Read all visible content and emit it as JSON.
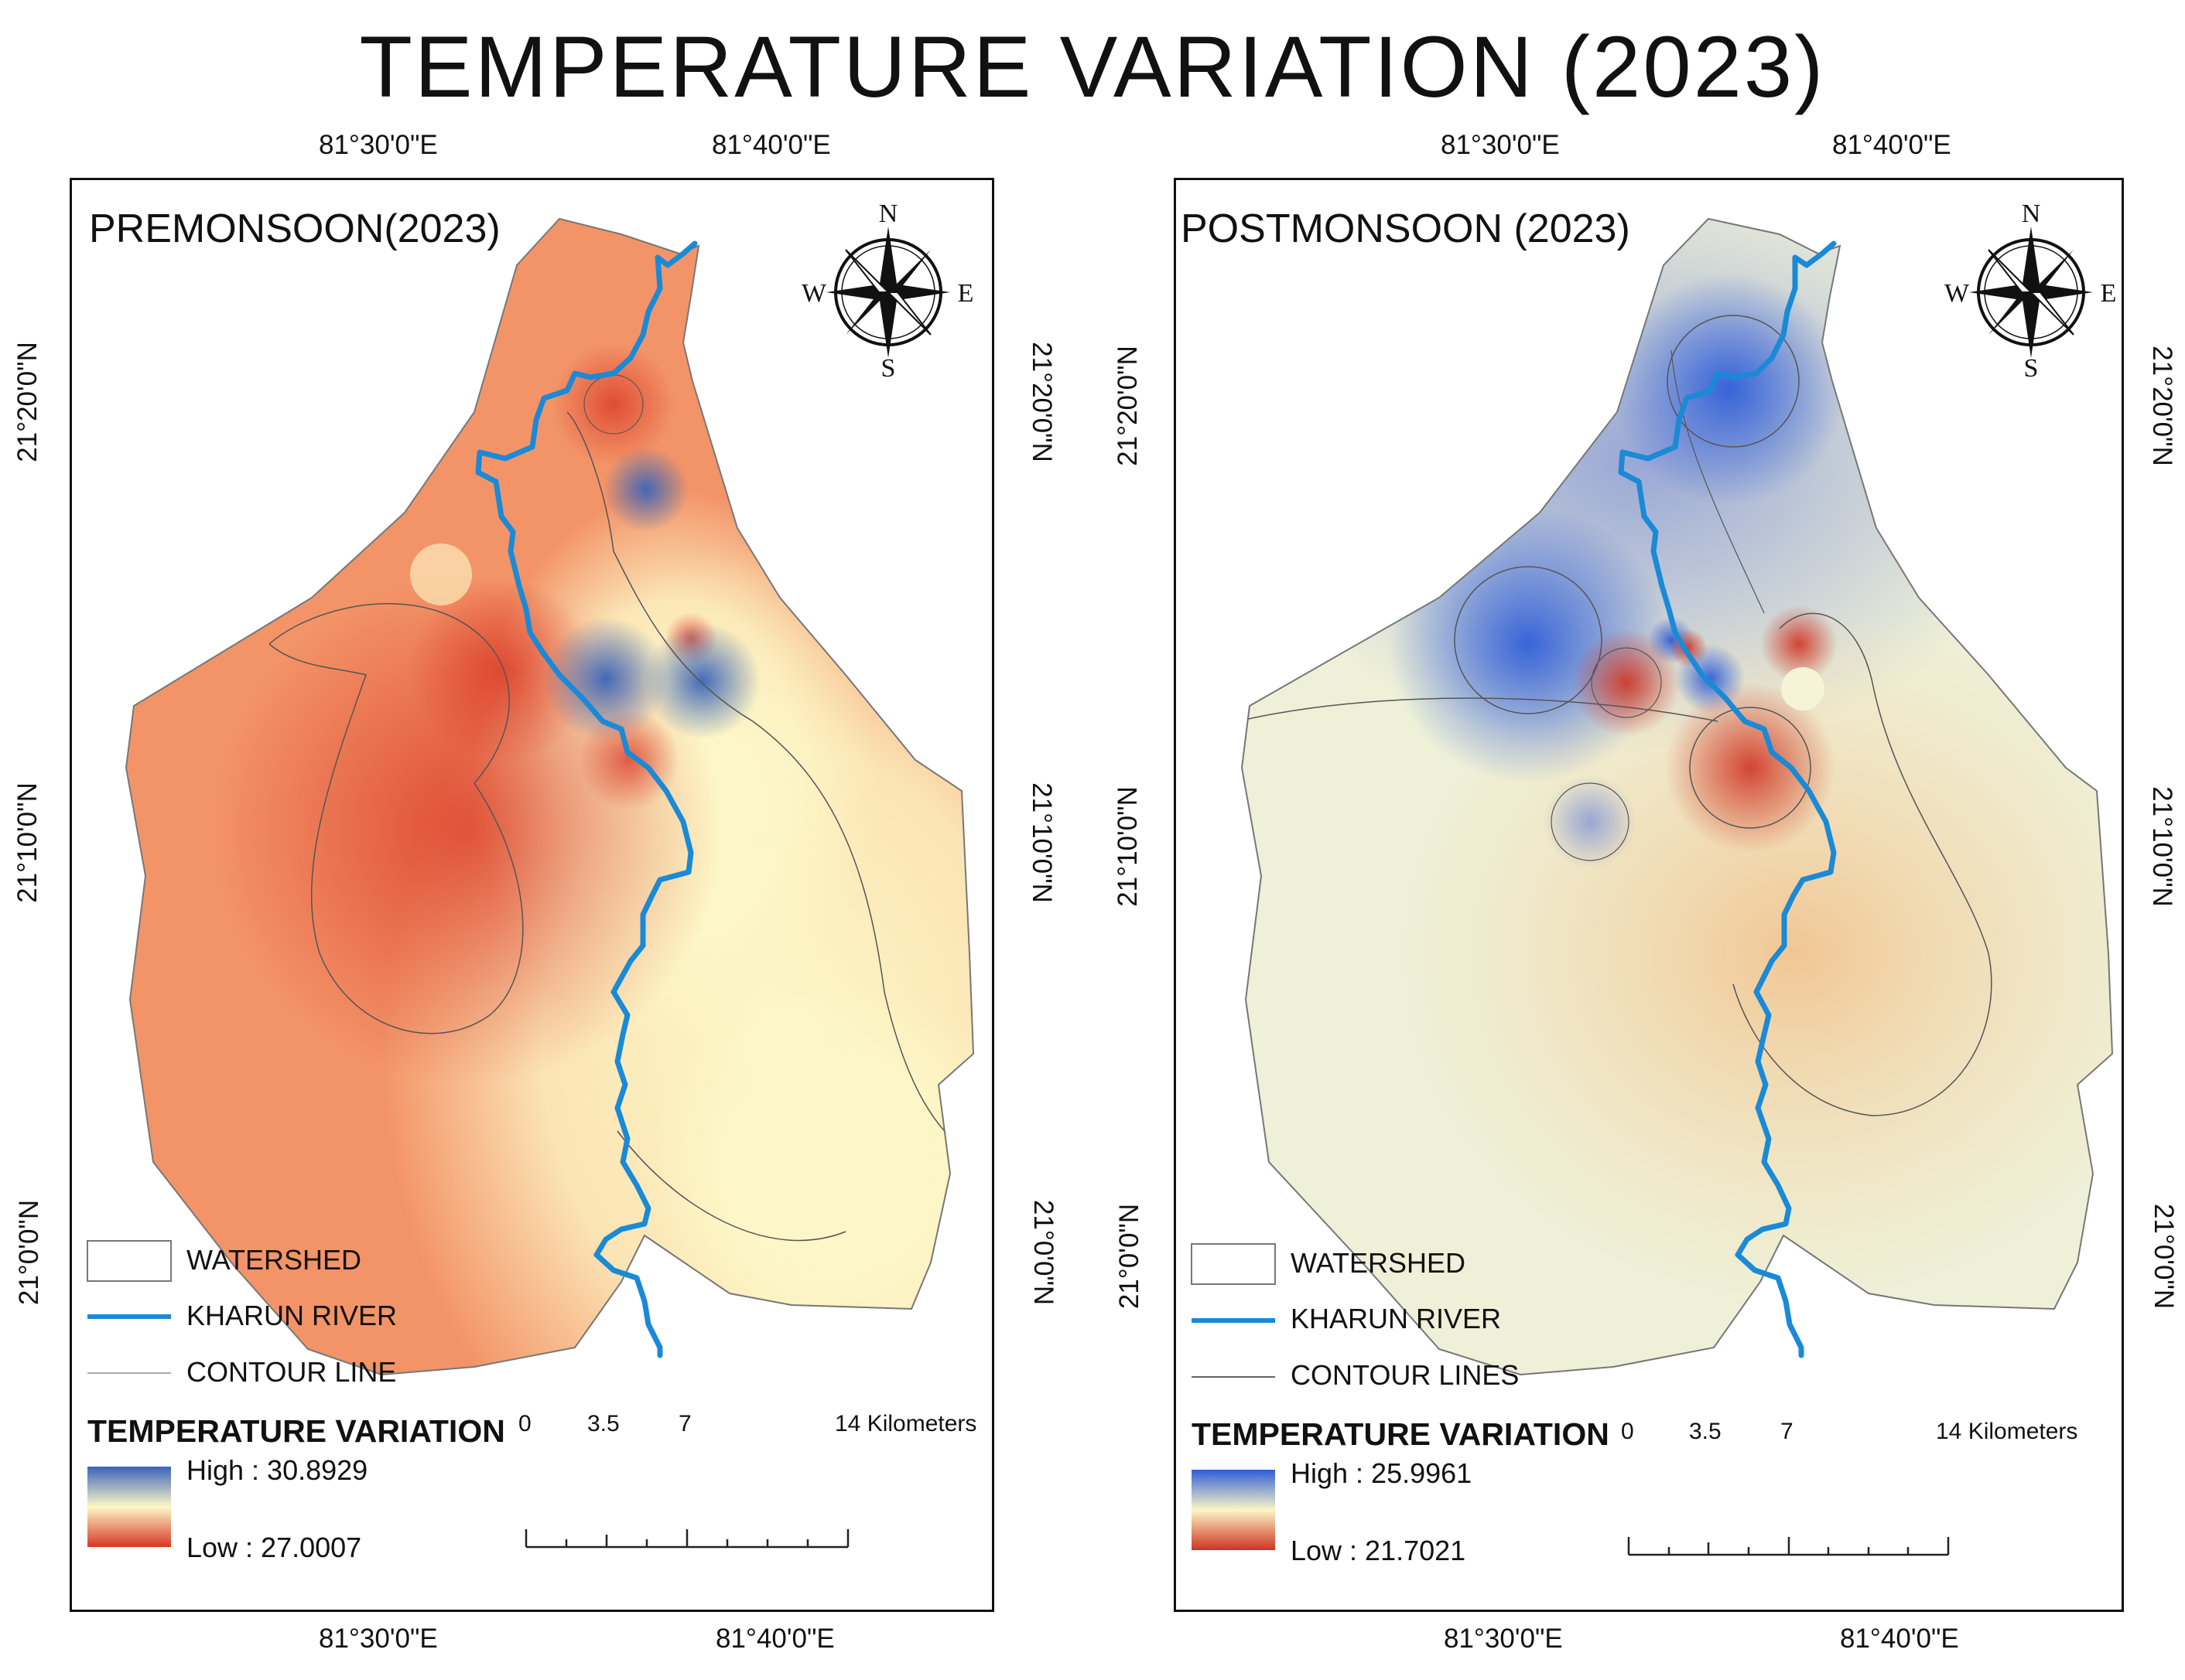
{
  "title": "TEMPERATURE VARIATION (2023)",
  "panels": [
    {
      "id": "premonsoon",
      "season": "PREMONSOON(2023)",
      "top_longitudes": [
        "81°30'0\"E",
        "81°40'0\"E"
      ],
      "bottom_longitudes": [
        "81°30'0\"E",
        "81°40'0\"E"
      ],
      "latitudes": [
        "21°20'0\"N",
        "21°10'0\"N",
        "21°0'0\"N"
      ],
      "compass": {
        "n": "N",
        "s": "S",
        "e": "E",
        "w": "W"
      },
      "legend": {
        "watershed": "WATERSHED",
        "river": "KHARUN RIVER",
        "contour": "CONTOUR LINE",
        "title": "TEMPERATURE VARIATION",
        "high": "High : 30.8929",
        "low": "Low : 27.0007"
      },
      "scale": {
        "labels": [
          "0",
          "3.5",
          "7",
          "14 Kilometers"
        ]
      },
      "colors": {
        "high": "#3a64b8",
        "mid": "#fdf8c8",
        "low": "#d93624",
        "base": "#f39468",
        "river": "#1a8ad6"
      }
    },
    {
      "id": "postmonsoon",
      "season": "POSTMONSOON (2023)",
      "top_longitudes": [
        "81°30'0\"E",
        "81°40'0\"E"
      ],
      "bottom_longitudes": [
        "81°30'0\"E",
        "81°40'0\"E"
      ],
      "latitudes": [
        "21°20'0\"N",
        "21°10'0\"N",
        "21°0'0\"N"
      ],
      "compass": {
        "n": "N",
        "s": "S",
        "e": "E",
        "w": "W"
      },
      "legend": {
        "watershed": "WATERSHED",
        "river": "KHARUN RIVER",
        "contour": "CONTOUR LINES",
        "title": "TEMPERATURE VARIATION",
        "high": "High : 25.9961",
        "low": "Low : 21.7021"
      },
      "scale": {
        "labels": [
          "0",
          "3.5",
          "7",
          "14 Kilometers"
        ]
      },
      "colors": {
        "high": "#2f5ed8",
        "mid": "#fbf6c6",
        "low": "#cf3322",
        "base": "#eef0d8",
        "river": "#1a8ad6"
      }
    }
  ]
}
